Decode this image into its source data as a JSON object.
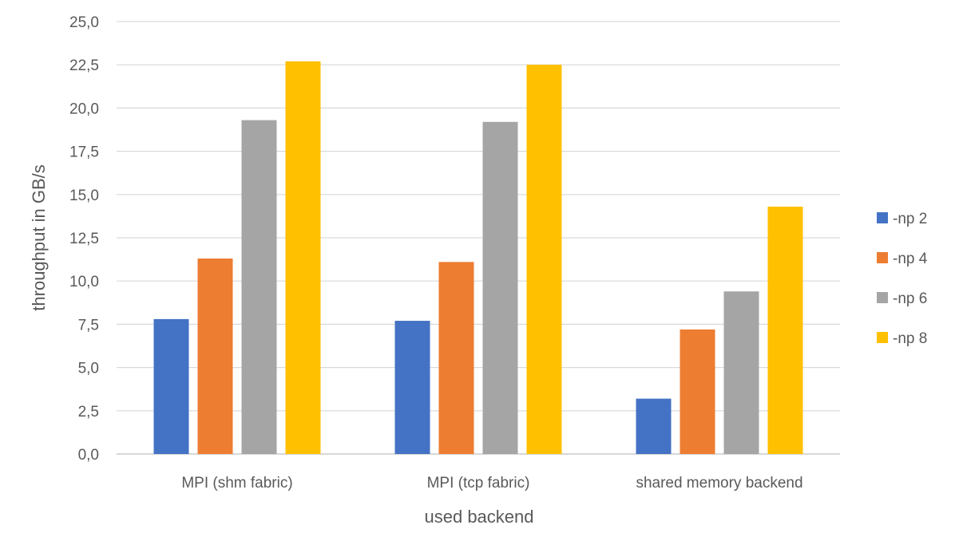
{
  "chart_data": {
    "type": "bar",
    "title": "",
    "xlabel": "used backend",
    "ylabel": "throughput in GB/s",
    "ylim": [
      0,
      25
    ],
    "yticks": [
      "0,0",
      "2,5",
      "5,0",
      "7,5",
      "10,0",
      "12,5",
      "15,0",
      "17,5",
      "20,0",
      "22,5",
      "25,0"
    ],
    "ytick_values": [
      0,
      2.5,
      5,
      7.5,
      10,
      12.5,
      15,
      17.5,
      20,
      22.5,
      25
    ],
    "grid": true,
    "legend_position": "right",
    "categories": [
      "MPI (shm fabric)",
      "MPI (tcp fabric)",
      "shared memory backend"
    ],
    "series": [
      {
        "name": "-np 2",
        "color": "#4472C4",
        "values": [
          7.8,
          7.7,
          3.2
        ]
      },
      {
        "name": "-np 4",
        "color": "#ED7D31",
        "values": [
          11.3,
          11.1,
          7.2
        ]
      },
      {
        "name": "-np 6",
        "color": "#A5A5A5",
        "values": [
          19.3,
          19.2,
          9.4
        ]
      },
      {
        "name": "-np 8",
        "color": "#FFC000",
        "values": [
          22.7,
          22.5,
          14.3
        ]
      }
    ]
  }
}
